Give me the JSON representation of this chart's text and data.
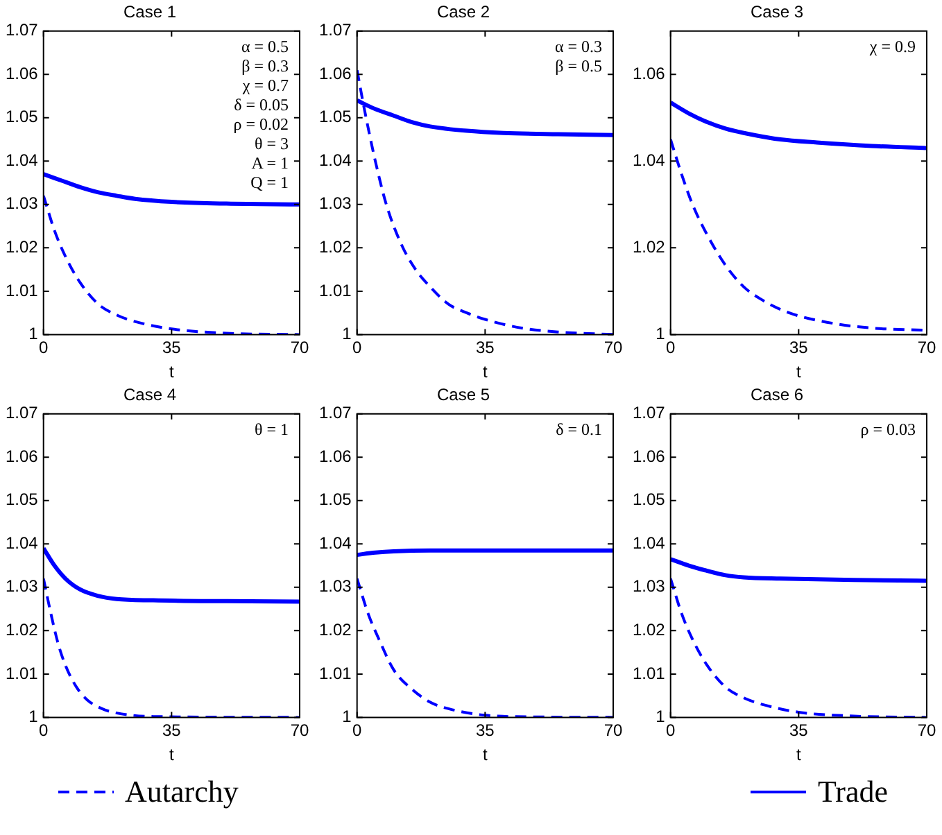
{
  "chart_data": [
    {
      "type": "line",
      "title": "Case 1",
      "xlabel": "t",
      "xlim": [
        0,
        70
      ],
      "xticks": [
        0,
        35,
        70
      ],
      "ylim": [
        1,
        1.07
      ],
      "yticks": [
        1,
        1.01,
        1.02,
        1.03,
        1.04,
        1.05,
        1.06,
        1.07
      ],
      "grid": false,
      "legend": "bottom",
      "marker": "none",
      "annotations": [
        "α = 0.5",
        "β = 0.3",
        "χ = 0.7",
        "δ = 0.05",
        "ρ = 0.02",
        "θ = 3",
        "A = 1",
        "Q = 1"
      ],
      "series": [
        {
          "name": "Autarchy",
          "color": "#0000ff",
          "line_style": "dashed",
          "x": [
            0,
            3,
            6,
            10,
            15,
            20,
            25,
            35,
            50,
            70
          ],
          "values": [
            1.032,
            1.024,
            1.018,
            1.012,
            1.007,
            1.0045,
            1.003,
            1.0013,
            1.0003,
            1.0
          ]
        },
        {
          "name": "Trade",
          "color": "#0000ff",
          "line_style": "solid",
          "x": [
            0,
            5,
            10,
            15,
            20,
            25,
            35,
            50,
            70
          ],
          "values": [
            1.037,
            1.0355,
            1.034,
            1.0328,
            1.032,
            1.0313,
            1.0306,
            1.0302,
            1.03
          ]
        }
      ]
    },
    {
      "type": "line",
      "title": "Case 2",
      "xlabel": "t",
      "xlim": [
        0,
        70
      ],
      "xticks": [
        0,
        35,
        70
      ],
      "ylim": [
        1,
        1.07
      ],
      "yticks": [
        1,
        1.01,
        1.02,
        1.03,
        1.04,
        1.05,
        1.06,
        1.07
      ],
      "grid": false,
      "legend": false,
      "marker": "none",
      "annotations": [
        "α = 0.3",
        "β = 0.5"
      ],
      "series": [
        {
          "color": "#0000ff",
          "line_style": "dashed",
          "x": [
            0,
            2,
            5,
            8,
            12,
            16,
            20,
            25,
            30,
            35,
            45,
            55,
            70
          ],
          "values": [
            1.061,
            1.052,
            1.04,
            1.03,
            1.021,
            1.015,
            1.011,
            1.007,
            1.005,
            1.0035,
            1.0015,
            1.0006,
            1.0
          ]
        },
        {
          "color": "#0000ff",
          "line_style": "solid",
          "x": [
            0,
            5,
            10,
            15,
            20,
            30,
            40,
            55,
            70
          ],
          "values": [
            1.054,
            1.052,
            1.0505,
            1.049,
            1.048,
            1.047,
            1.0465,
            1.0462,
            1.046
          ]
        }
      ]
    },
    {
      "type": "line",
      "title": "Case 3",
      "xlabel": "t",
      "xlim": [
        0,
        70
      ],
      "xticks": [
        0,
        35,
        70
      ],
      "ylim": [
        1,
        1.07
      ],
      "yticks": [
        1,
        1.02,
        1.04,
        1.06
      ],
      "grid": false,
      "legend": false,
      "marker": "none",
      "annotations": [
        "χ = 0.9"
      ],
      "series": [
        {
          "color": "#0000ff",
          "line_style": "dashed",
          "x": [
            0,
            3,
            6,
            10,
            15,
            20,
            25,
            30,
            35,
            45,
            55,
            70
          ],
          "values": [
            1.045,
            1.037,
            1.03,
            1.023,
            1.016,
            1.011,
            1.008,
            1.0058,
            1.0043,
            1.0025,
            1.0015,
            1.001
          ]
        },
        {
          "color": "#0000ff",
          "line_style": "solid",
          "x": [
            0,
            5,
            10,
            15,
            20,
            30,
            40,
            55,
            70
          ],
          "values": [
            1.0535,
            1.051,
            1.049,
            1.0475,
            1.0465,
            1.045,
            1.0443,
            1.0435,
            1.043
          ]
        }
      ]
    },
    {
      "type": "line",
      "title": "Case 4",
      "xlabel": "t",
      "xlim": [
        0,
        70
      ],
      "xticks": [
        0,
        35,
        70
      ],
      "ylim": [
        1,
        1.07
      ],
      "yticks": [
        1,
        1.01,
        1.02,
        1.03,
        1.04,
        1.05,
        1.06,
        1.07
      ],
      "grid": false,
      "legend": false,
      "marker": "none",
      "annotations": [
        "θ = 1"
      ],
      "series": [
        {
          "color": "#0000ff",
          "line_style": "dashed",
          "x": [
            0,
            2,
            4,
            6,
            9,
            12,
            16,
            20,
            30,
            70
          ],
          "values": [
            1.032,
            1.024,
            1.017,
            1.012,
            1.007,
            1.004,
            1.002,
            1.001,
            1.0002,
            1.0
          ]
        },
        {
          "color": "#0000ff",
          "line_style": "solid",
          "x": [
            0,
            3,
            6,
            10,
            15,
            20,
            30,
            50,
            70
          ],
          "values": [
            1.039,
            1.035,
            1.032,
            1.0295,
            1.028,
            1.0273,
            1.027,
            1.0268,
            1.0267
          ]
        }
      ]
    },
    {
      "type": "line",
      "title": "Case 5",
      "xlabel": "t",
      "xlim": [
        0,
        70
      ],
      "xticks": [
        0,
        35,
        70
      ],
      "ylim": [
        1,
        1.07
      ],
      "yticks": [
        1,
        1.01,
        1.02,
        1.03,
        1.04,
        1.05,
        1.06,
        1.07
      ],
      "grid": false,
      "legend": false,
      "marker": "none",
      "annotations": [
        "δ = 0.1"
      ],
      "series": [
        {
          "color": "#0000ff",
          "line_style": "dashed",
          "x": [
            0,
            3,
            6,
            10,
            15,
            20,
            25,
            35,
            50,
            70
          ],
          "values": [
            1.032,
            1.024,
            1.018,
            1.011,
            1.0065,
            1.0035,
            1.002,
            1.0005,
            1.0001,
            1.0
          ]
        },
        {
          "color": "#0000ff",
          "line_style": "solid",
          "x": [
            0,
            5,
            10,
            20,
            70
          ],
          "values": [
            1.0375,
            1.038,
            1.0383,
            1.0385,
            1.0385
          ]
        }
      ]
    },
    {
      "type": "line",
      "title": "Case 6",
      "xlabel": "t",
      "xlim": [
        0,
        70
      ],
      "xticks": [
        0,
        35,
        70
      ],
      "ylim": [
        1,
        1.07
      ],
      "yticks": [
        1,
        1.01,
        1.02,
        1.03,
        1.04,
        1.05,
        1.06,
        1.07
      ],
      "grid": false,
      "legend": false,
      "marker": "none",
      "annotations": [
        "ρ = 0.03"
      ],
      "series": [
        {
          "color": "#0000ff",
          "line_style": "dashed",
          "x": [
            0,
            3,
            6,
            10,
            15,
            20,
            25,
            35,
            50,
            70
          ],
          "values": [
            1.032,
            1.024,
            1.018,
            1.012,
            1.007,
            1.0045,
            1.003,
            1.0012,
            1.0003,
            1.0
          ]
        },
        {
          "color": "#0000ff",
          "line_style": "solid",
          "x": [
            0,
            5,
            10,
            15,
            20,
            30,
            50,
            70
          ],
          "values": [
            1.0365,
            1.035,
            1.0338,
            1.0328,
            1.0323,
            1.032,
            1.0317,
            1.0315
          ]
        }
      ]
    }
  ]
}
